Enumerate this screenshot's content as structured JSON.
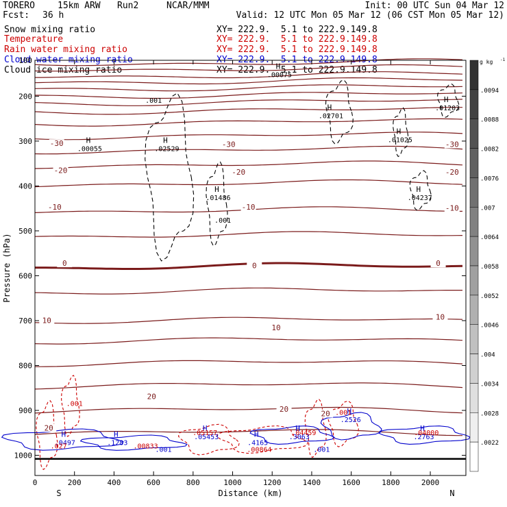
{
  "header": {
    "model": "TORERO",
    "resolution": "15km ARW",
    "run": "Run2",
    "org": "NCAR/MMM",
    "init": "Init: 00 UTC Sun 04 Mar 12",
    "fcst_label": "Fcst:",
    "fcst_value": "36 h",
    "valid": "Valid: 12 UTC Mon 05 Mar 12 (06 CST Mon 05 Mar 12)"
  },
  "legend": [
    {
      "label": "Snow mixing ratio",
      "xy": "",
      "color": "#000000"
    },
    {
      "label": "Temperature",
      "xy": "XY= 222.9.  5.1 to 222.9.149.8",
      "color": "#cc0000"
    },
    {
      "label": "Rain water mixing ratio",
      "xy": "XY= 222.9.  5.1 to 222.9.149.8",
      "color": "#cc0000"
    },
    {
      "label": "Cloud water mixing ratio",
      "xy": "XY= 222.9.  5.1 to 222.9.149.8",
      "color": "#0000cc"
    },
    {
      "label": "Cloud ice mixing ratio",
      "xy": "XY= 222.9.  5.1 to 222.9.149.8",
      "color": "#000000"
    }
  ],
  "snow_xy": "XY= 222.9.  5.1 to 222.9.149.8",
  "chart_data": {
    "type": "cross-section contour",
    "ylabel": "Pressure (hPa)",
    "xlabel": "Distance (km)",
    "x_ticks": [
      0,
      200,
      400,
      600,
      800,
      1000,
      1200,
      1400,
      1600,
      1800,
      2000
    ],
    "y_ticks": [
      200,
      300,
      400,
      500,
      600,
      700,
      800,
      900,
      1000
    ],
    "y_top_label": "100",
    "xlim": [
      0,
      2180
    ],
    "ylim": [
      1045,
      120
    ],
    "left_end": "S",
    "right_end": "N",
    "temperature_isotherms": [
      {
        "p": 125
      },
      {
        "p": 138
      },
      {
        "p": 153
      },
      {
        "p": 166
      },
      {
        "p": 181
      },
      {
        "p": 197
      },
      {
        "p": 213
      },
      {
        "p": 232
      },
      {
        "p": 258
      },
      {
        "p": 288
      },
      {
        "p": 320
      },
      {
        "p": 353
      },
      {
        "p": 395
      },
      {
        "p": 455
      },
      {
        "p": 510
      },
      {
        "p": 580
      },
      {
        "p": 635
      },
      {
        "p": 700
      },
      {
        "p": 745
      },
      {
        "p": 795
      },
      {
        "p": 845
      },
      {
        "p": 900
      },
      {
        "p": 950
      }
    ],
    "temperature_labels": [
      {
        "text": "-30",
        "x": 110,
        "p": 308
      },
      {
        "text": "-30",
        "x": 980,
        "p": 310
      },
      {
        "text": "-30",
        "x": 2110,
        "p": 310
      },
      {
        "text": "-20",
        "x": 130,
        "p": 368
      },
      {
        "text": "-20",
        "x": 1030,
        "p": 372
      },
      {
        "text": "-20",
        "x": 2110,
        "p": 372
      },
      {
        "text": "-10",
        "x": 100,
        "p": 450
      },
      {
        "text": "-10",
        "x": 1080,
        "p": 450
      },
      {
        "text": "-10",
        "x": 2110,
        "p": 452
      },
      {
        "text": "0",
        "x": 150,
        "p": 575
      },
      {
        "text": "0",
        "x": 1110,
        "p": 580
      },
      {
        "text": "0",
        "x": 2040,
        "p": 575
      },
      {
        "text": "10",
        "x": 60,
        "p": 702
      },
      {
        "text": "10",
        "x": 1220,
        "p": 718
      },
      {
        "text": "10",
        "x": 2050,
        "p": 695
      },
      {
        "text": "20",
        "x": 590,
        "p": 872
      },
      {
        "text": "20",
        "x": 1260,
        "p": 900
      },
      {
        "text": "20",
        "x": 1470,
        "p": 910
      },
      {
        "text": "20",
        "x": 70,
        "p": 942
      }
    ],
    "shade_bar": {
      "unit": "g kg",
      "unit_exp": "-1",
      "levels": [
        ".0094",
        ".0088",
        ".0082",
        ".0076",
        ".007",
        ".0064",
        ".0058",
        ".0052",
        ".0046",
        ".004",
        ".0034",
        ".0028",
        ".0022"
      ]
    },
    "maxima": [
      {
        "mark": "H",
        "value": ".00075",
        "x": 1230,
        "p": 148,
        "color": "#000000"
      },
      {
        "mark": "H",
        "value": ".02701",
        "x": 1490,
        "p": 240,
        "color": "#000000"
      },
      {
        "mark": "H",
        "value": ".01203",
        "x": 2080,
        "p": 222,
        "color": "#000000"
      },
      {
        "mark": "H",
        "value": ".01025",
        "x": 1840,
        "p": 293,
        "color": "#000000"
      },
      {
        "mark": "H",
        "value": ".00055",
        "x": 270,
        "p": 313,
        "color": "#000000"
      },
      {
        "mark": "H",
        "value": ".02529",
        "x": 660,
        "p": 313,
        "color": "#000000"
      },
      {
        "mark": "H",
        "value": ".01486",
        "x": 920,
        "p": 422,
        "color": "#000000"
      },
      {
        "mark": "H",
        "value": ".04237",
        "x": 1940,
        "p": 422,
        "color": "#000000"
      },
      {
        "mark": "H",
        "value": ".0497",
        "x": 145,
        "p": 968,
        "color": "#0000cc"
      },
      {
        "mark": "H",
        "value": ".1283",
        "x": 410,
        "p": 968,
        "color": "#0000cc"
      },
      {
        "mark": "H",
        "value": ".05453",
        "x": 860,
        "p": 955,
        "color": "#0000cc"
      },
      {
        "mark": "H",
        "value": ".4165",
        "x": 1120,
        "p": 968,
        "color": "#0000cc"
      },
      {
        "mark": "H",
        "value": ".3063",
        "x": 1330,
        "p": 955,
        "color": "#0000cc"
      },
      {
        "mark": "H",
        "value": ".2526",
        "x": 1590,
        "p": 917,
        "color": "#0000cc"
      },
      {
        "mark": "H",
        "value": ".2763",
        "x": 1960,
        "p": 955,
        "color": "#0000cc"
      }
    ],
    "rain_labels": [
      {
        "text": ".001",
        "x": 200,
        "p": 890
      },
      {
        "text": ".027",
        "x": 120,
        "p": 985
      },
      {
        "text": ".00833",
        "x": 560,
        "p": 985
      },
      {
        "text": ".05157",
        "x": 860,
        "p": 955
      },
      {
        "text": ".00864",
        "x": 1135,
        "p": 992
      },
      {
        "text": ".04459",
        "x": 1360,
        "p": 955
      },
      {
        "text": ".001",
        "x": 1560,
        "p": 910
      },
      {
        "text": ".04000",
        "x": 1980,
        "p": 955
      }
    ],
    "cloud_water_labels": [
      {
        "text": ".001",
        "x": 650,
        "p": 992
      },
      {
        "text": ".001",
        "x": 1450,
        "p": 992
      }
    ],
    "ice_labels": [
      {
        "text": ".001",
        "x": 600,
        "p": 215
      },
      {
        "text": ".001",
        "x": 950,
        "p": 482
      }
    ]
  }
}
